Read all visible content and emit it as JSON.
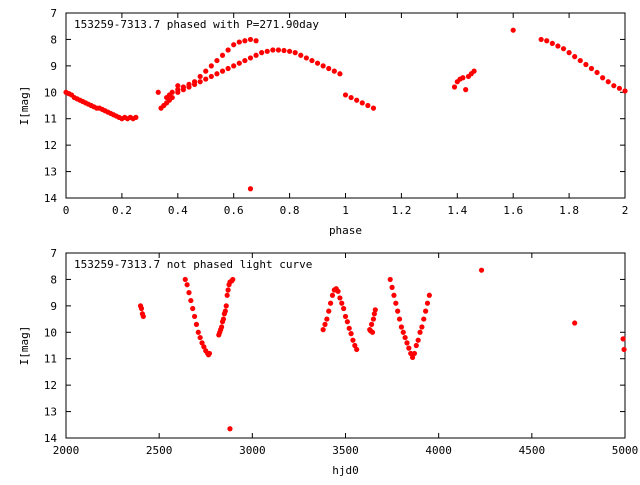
{
  "colors": {
    "marker": "#ff0000",
    "axis": "#000000",
    "background": "#ffffff"
  },
  "chart_data": [
    {
      "type": "scatter",
      "title": "153259-7313.7 phased with P=271.90day",
      "xlabel": "phase",
      "ylabel": "I[mag]",
      "xlim": [
        0,
        2
      ],
      "ylim": [
        14,
        7
      ],
      "inverted_y": true,
      "x_ticks": [
        "0",
        "0.2",
        "0.4",
        "0.6",
        "0.8",
        "1",
        "1.2",
        "1.4",
        "1.6",
        "1.8",
        "2"
      ],
      "y_ticks": [
        "7",
        "8",
        "9",
        "10",
        "11",
        "12",
        "13",
        "14"
      ],
      "grid": false,
      "points": [
        [
          0.0,
          10.0
        ],
        [
          0.01,
          10.05
        ],
        [
          0.02,
          10.1
        ],
        [
          0.03,
          10.2
        ],
        [
          0.04,
          10.25
        ],
        [
          0.05,
          10.3
        ],
        [
          0.06,
          10.35
        ],
        [
          0.07,
          10.4
        ],
        [
          0.08,
          10.45
        ],
        [
          0.09,
          10.5
        ],
        [
          0.1,
          10.55
        ],
        [
          0.11,
          10.6
        ],
        [
          0.12,
          10.6
        ],
        [
          0.13,
          10.65
        ],
        [
          0.14,
          10.7
        ],
        [
          0.15,
          10.75
        ],
        [
          0.16,
          10.8
        ],
        [
          0.17,
          10.85
        ],
        [
          0.18,
          10.9
        ],
        [
          0.19,
          10.95
        ],
        [
          0.2,
          11.0
        ],
        [
          0.21,
          10.95
        ],
        [
          0.22,
          11.0
        ],
        [
          0.23,
          10.95
        ],
        [
          0.24,
          11.0
        ],
        [
          0.25,
          10.95
        ],
        [
          0.34,
          10.6
        ],
        [
          0.35,
          10.5
        ],
        [
          0.36,
          10.4
        ],
        [
          0.37,
          10.3
        ],
        [
          0.38,
          10.2
        ],
        [
          0.4,
          10.0
        ],
        [
          0.42,
          9.9
        ],
        [
          0.44,
          9.8
        ],
        [
          0.46,
          9.7
        ],
        [
          0.48,
          9.6
        ],
        [
          0.5,
          9.5
        ],
        [
          0.52,
          9.4
        ],
        [
          0.54,
          9.3
        ],
        [
          0.56,
          9.2
        ],
        [
          0.58,
          9.1
        ],
        [
          0.6,
          9.0
        ],
        [
          0.62,
          8.9
        ],
        [
          0.64,
          8.8
        ],
        [
          0.66,
          8.7
        ],
        [
          0.68,
          8.6
        ],
        [
          0.7,
          8.5
        ],
        [
          0.72,
          8.45
        ],
        [
          0.74,
          8.4
        ],
        [
          0.76,
          8.4
        ],
        [
          0.78,
          8.42
        ],
        [
          0.8,
          8.45
        ],
        [
          0.82,
          8.5
        ],
        [
          0.84,
          8.6
        ],
        [
          0.86,
          8.7
        ],
        [
          0.88,
          8.8
        ],
        [
          0.9,
          8.9
        ],
        [
          0.92,
          9.0
        ],
        [
          0.94,
          9.1
        ],
        [
          0.96,
          9.2
        ],
        [
          0.98,
          9.3
        ],
        [
          0.36,
          10.2
        ],
        [
          0.37,
          10.1
        ],
        [
          0.38,
          10.0
        ],
        [
          0.4,
          9.9
        ],
        [
          0.42,
          9.8
        ],
        [
          0.44,
          9.7
        ],
        [
          0.46,
          9.6
        ],
        [
          0.48,
          9.4
        ],
        [
          0.5,
          9.2
        ],
        [
          0.52,
          9.0
        ],
        [
          0.54,
          8.8
        ],
        [
          0.56,
          8.6
        ],
        [
          0.58,
          8.4
        ],
        [
          0.6,
          8.2
        ],
        [
          0.62,
          8.1
        ],
        [
          0.64,
          8.05
        ],
        [
          0.66,
          8.0
        ],
        [
          0.68,
          8.05
        ],
        [
          0.33,
          10.0
        ],
        [
          0.4,
          9.75
        ],
        [
          1.0,
          10.1
        ],
        [
          1.02,
          10.2
        ],
        [
          1.04,
          10.3
        ],
        [
          1.06,
          10.4
        ],
        [
          1.08,
          10.5
        ],
        [
          1.1,
          10.6
        ],
        [
          0.66,
          13.65
        ],
        [
          1.39,
          9.8
        ],
        [
          1.4,
          9.6
        ],
        [
          1.41,
          9.5
        ],
        [
          1.42,
          9.45
        ],
        [
          1.43,
          9.9
        ],
        [
          1.44,
          9.4
        ],
        [
          1.45,
          9.3
        ],
        [
          1.46,
          9.2
        ],
        [
          1.6,
          7.65
        ],
        [
          1.7,
          8.0
        ],
        [
          1.72,
          8.05
        ],
        [
          1.74,
          8.15
        ],
        [
          1.76,
          8.25
        ],
        [
          1.78,
          8.35
        ],
        [
          1.8,
          8.5
        ],
        [
          1.82,
          8.65
        ],
        [
          1.84,
          8.8
        ],
        [
          1.86,
          8.95
        ],
        [
          1.88,
          9.1
        ],
        [
          1.9,
          9.25
        ],
        [
          1.92,
          9.45
        ],
        [
          1.94,
          9.6
        ],
        [
          1.96,
          9.75
        ],
        [
          1.98,
          9.85
        ],
        [
          2.0,
          9.95
        ]
      ]
    },
    {
      "type": "scatter",
      "title": "153259-7313.7 not phased light curve",
      "xlabel": "hjd0",
      "ylabel": "I[mag]",
      "xlim": [
        2000,
        5000
      ],
      "ylim": [
        14,
        7
      ],
      "inverted_y": true,
      "x_ticks": [
        "2000",
        "2500",
        "3000",
        "3500",
        "4000",
        "4500",
        "5000"
      ],
      "y_ticks": [
        "7",
        "8",
        "9",
        "10",
        "11",
        "12",
        "13",
        "14"
      ],
      "grid": false,
      "points": [
        [
          2400,
          9.0
        ],
        [
          2405,
          9.1
        ],
        [
          2410,
          9.3
        ],
        [
          2415,
          9.4
        ],
        [
          2640,
          8.0
        ],
        [
          2650,
          8.2
        ],
        [
          2660,
          8.5
        ],
        [
          2670,
          8.8
        ],
        [
          2680,
          9.1
        ],
        [
          2690,
          9.4
        ],
        [
          2700,
          9.7
        ],
        [
          2710,
          10.0
        ],
        [
          2720,
          10.2
        ],
        [
          2730,
          10.4
        ],
        [
          2740,
          10.55
        ],
        [
          2750,
          10.7
        ],
        [
          2760,
          10.8
        ],
        [
          2765,
          10.85
        ],
        [
          2770,
          10.8
        ],
        [
          2820,
          10.1
        ],
        [
          2825,
          10.0
        ],
        [
          2830,
          9.9
        ],
        [
          2835,
          9.8
        ],
        [
          2840,
          9.6
        ],
        [
          2845,
          9.5
        ],
        [
          2850,
          9.3
        ],
        [
          2855,
          9.2
        ],
        [
          2860,
          9.0
        ],
        [
          2865,
          8.6
        ],
        [
          2870,
          8.4
        ],
        [
          2875,
          8.2
        ],
        [
          2880,
          8.1
        ],
        [
          2890,
          8.05
        ],
        [
          2895,
          8.0
        ],
        [
          2880,
          13.65
        ],
        [
          3380,
          9.9
        ],
        [
          3390,
          9.7
        ],
        [
          3400,
          9.5
        ],
        [
          3410,
          9.2
        ],
        [
          3420,
          8.9
        ],
        [
          3430,
          8.6
        ],
        [
          3440,
          8.4
        ],
        [
          3450,
          8.35
        ],
        [
          3460,
          8.45
        ],
        [
          3470,
          8.7
        ],
        [
          3480,
          8.9
        ],
        [
          3490,
          9.1
        ],
        [
          3500,
          9.4
        ],
        [
          3510,
          9.6
        ],
        [
          3520,
          9.85
        ],
        [
          3530,
          10.05
        ],
        [
          3540,
          10.3
        ],
        [
          3550,
          10.5
        ],
        [
          3560,
          10.65
        ],
        [
          3630,
          9.9
        ],
        [
          3640,
          9.7
        ],
        [
          3650,
          9.5
        ],
        [
          3655,
          9.3
        ],
        [
          3660,
          9.15
        ],
        [
          3635,
          9.95
        ],
        [
          3645,
          10.0
        ],
        [
          3740,
          8.0
        ],
        [
          3750,
          8.3
        ],
        [
          3760,
          8.6
        ],
        [
          3770,
          8.9
        ],
        [
          3780,
          9.2
        ],
        [
          3790,
          9.5
        ],
        [
          3800,
          9.8
        ],
        [
          3810,
          10.0
        ],
        [
          3820,
          10.2
        ],
        [
          3830,
          10.4
        ],
        [
          3840,
          10.6
        ],
        [
          3850,
          10.8
        ],
        [
          3860,
          10.95
        ],
        [
          3870,
          10.8
        ],
        [
          3880,
          10.5
        ],
        [
          3890,
          10.3
        ],
        [
          3900,
          10.0
        ],
        [
          3910,
          9.8
        ],
        [
          3920,
          9.5
        ],
        [
          3930,
          9.2
        ],
        [
          3940,
          8.9
        ],
        [
          3950,
          8.6
        ],
        [
          4230,
          7.65
        ],
        [
          4730,
          9.65
        ],
        [
          4990,
          10.25
        ],
        [
          4995,
          10.65
        ]
      ]
    }
  ]
}
